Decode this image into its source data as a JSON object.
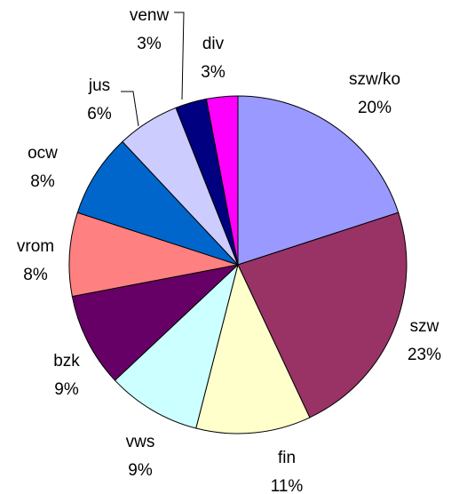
{
  "chart_data": {
    "type": "pie",
    "categories": [
      "szw/ko",
      "szw",
      "fin",
      "vws",
      "bzk",
      "vrom",
      "ocw",
      "jus",
      "venw",
      "div"
    ],
    "values": [
      20,
      23,
      11,
      9,
      9,
      8,
      8,
      6,
      3,
      3
    ],
    "value_labels": [
      "20%",
      "23%",
      "11%",
      "9%",
      "9%",
      "8%",
      "8%",
      "6%",
      "3%",
      "3%"
    ],
    "colors": [
      "#9999ff",
      "#993366",
      "#ffffcc",
      "#ccffff",
      "#660066",
      "#ff8080",
      "#0066cc",
      "#ccccff",
      "#000080",
      "#ff00ff"
    ]
  }
}
